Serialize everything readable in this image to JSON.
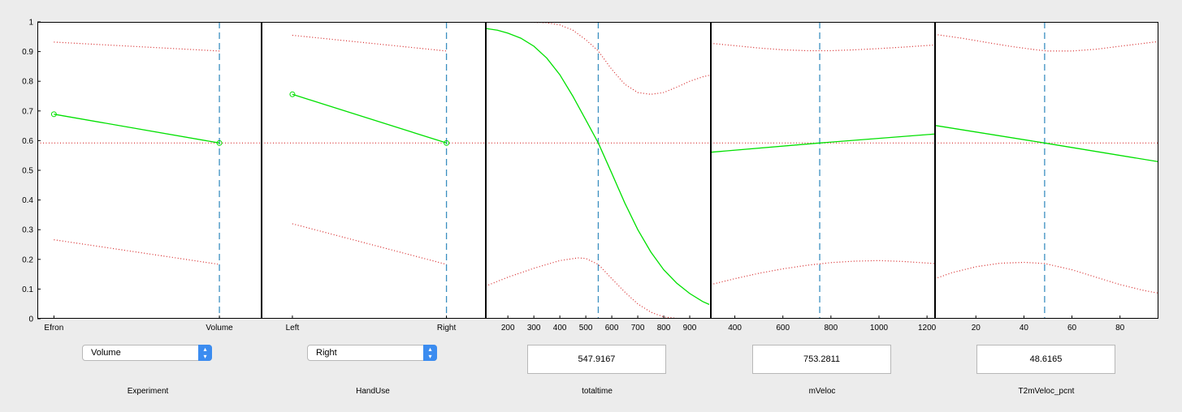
{
  "chart_data": {
    "type": "line",
    "y_axis": {
      "ylim": [
        0,
        1
      ],
      "ticks": [
        "0",
        "0.1",
        "0.2",
        "0.3",
        "0.4",
        "0.5",
        "0.6",
        "0.7",
        "0.8",
        "0.9",
        "1"
      ]
    },
    "response_value": 0.592,
    "colors": {
      "curve": "#00e000",
      "bounds": "#d62728",
      "reference": "#3b8fc0"
    },
    "panels": [
      {
        "predictor": "Experiment",
        "kind": "categorical",
        "xlim": [
          -0.1,
          1.25
        ],
        "ticks": [
          {
            "v": 0,
            "label": "Efron"
          },
          {
            "v": 1,
            "label": "Volume"
          }
        ],
        "current_x": 1,
        "curve": [
          [
            0,
            0.689
          ],
          [
            1,
            0.592
          ]
        ],
        "upper": [
          [
            0,
            0.932
          ],
          [
            1,
            0.902
          ]
        ],
        "lower": [
          [
            0,
            0.266
          ],
          [
            1,
            0.183
          ]
        ],
        "markers": [
          [
            0,
            0.689
          ],
          [
            1,
            0.592
          ]
        ]
      },
      {
        "predictor": "HandUse",
        "kind": "categorical",
        "xlim": [
          -0.2,
          1.25
        ],
        "ticks": [
          {
            "v": 0,
            "label": "Left"
          },
          {
            "v": 1,
            "label": "Right"
          }
        ],
        "current_x": 1,
        "curve": [
          [
            0,
            0.756
          ],
          [
            1,
            0.592
          ]
        ],
        "upper": [
          [
            0,
            0.955
          ],
          [
            1,
            0.902
          ]
        ],
        "lower": [
          [
            0,
            0.32
          ],
          [
            1,
            0.183
          ]
        ],
        "markers": [
          [
            0,
            0.756
          ],
          [
            1,
            0.592
          ]
        ]
      },
      {
        "predictor": "totaltime",
        "kind": "continuous",
        "xlim": [
          115,
          975
        ],
        "ticks": [
          {
            "v": 200,
            "label": "200"
          },
          {
            "v": 300,
            "label": "300"
          },
          {
            "v": 400,
            "label": "400"
          },
          {
            "v": 500,
            "label": "500"
          },
          {
            "v": 600,
            "label": "600"
          },
          {
            "v": 700,
            "label": "700"
          },
          {
            "v": 800,
            "label": "800"
          },
          {
            "v": 900,
            "label": "900"
          }
        ],
        "current_x": 547.9167,
        "curve": [
          [
            115,
            0.978
          ],
          [
            160,
            0.972
          ],
          [
            200,
            0.962
          ],
          [
            250,
            0.945
          ],
          [
            300,
            0.918
          ],
          [
            350,
            0.878
          ],
          [
            400,
            0.822
          ],
          [
            450,
            0.75
          ],
          [
            500,
            0.67
          ],
          [
            548,
            0.592
          ],
          [
            600,
            0.49
          ],
          [
            650,
            0.39
          ],
          [
            700,
            0.3
          ],
          [
            750,
            0.225
          ],
          [
            800,
            0.165
          ],
          [
            850,
            0.12
          ],
          [
            900,
            0.085
          ],
          [
            950,
            0.058
          ],
          [
            975,
            0.048
          ]
        ],
        "upper": [
          [
            115,
            1.0
          ],
          [
            250,
            1.0
          ],
          [
            350,
            0.997
          ],
          [
            400,
            0.99
          ],
          [
            450,
            0.972
          ],
          [
            500,
            0.94
          ],
          [
            548,
            0.902
          ],
          [
            600,
            0.84
          ],
          [
            650,
            0.79
          ],
          [
            700,
            0.762
          ],
          [
            750,
            0.756
          ],
          [
            800,
            0.762
          ],
          [
            850,
            0.78
          ],
          [
            900,
            0.8
          ],
          [
            950,
            0.815
          ],
          [
            975,
            0.82
          ]
        ],
        "lower": [
          [
            115,
            0.11
          ],
          [
            200,
            0.14
          ],
          [
            300,
            0.17
          ],
          [
            400,
            0.196
          ],
          [
            470,
            0.205
          ],
          [
            500,
            0.203
          ],
          [
            548,
            0.183
          ],
          [
            600,
            0.135
          ],
          [
            650,
            0.09
          ],
          [
            700,
            0.05
          ],
          [
            750,
            0.022
          ],
          [
            800,
            0.006
          ],
          [
            850,
            0.001
          ],
          [
            900,
            0.0
          ],
          [
            975,
            0.0
          ]
        ],
        "markers": []
      },
      {
        "predictor": "mVeloc",
        "kind": "continuous",
        "xlim": [
          300,
          1230
        ],
        "ticks": [
          {
            "v": 400,
            "label": "400"
          },
          {
            "v": 600,
            "label": "600"
          },
          {
            "v": 800,
            "label": "800"
          },
          {
            "v": 1000,
            "label": "1000"
          },
          {
            "v": 1200,
            "label": "1200"
          }
        ],
        "current_x": 753.2811,
        "curve": [
          [
            300,
            0.561
          ],
          [
            753,
            0.592
          ],
          [
            1230,
            0.622
          ]
        ],
        "upper": [
          [
            300,
            0.928
          ],
          [
            400,
            0.92
          ],
          [
            500,
            0.912
          ],
          [
            600,
            0.906
          ],
          [
            700,
            0.903
          ],
          [
            800,
            0.903
          ],
          [
            900,
            0.906
          ],
          [
            1000,
            0.91
          ],
          [
            1100,
            0.915
          ],
          [
            1230,
            0.922
          ]
        ],
        "lower": [
          [
            300,
            0.115
          ],
          [
            400,
            0.135
          ],
          [
            500,
            0.153
          ],
          [
            600,
            0.168
          ],
          [
            700,
            0.18
          ],
          [
            800,
            0.189
          ],
          [
            900,
            0.194
          ],
          [
            1000,
            0.196
          ],
          [
            1100,
            0.193
          ],
          [
            1230,
            0.186
          ]
        ],
        "markers": []
      },
      {
        "predictor": "T2mVeloc_pcnt",
        "kind": "continuous",
        "xlim": [
          3,
          96
        ],
        "ticks": [
          {
            "v": 20,
            "label": "20"
          },
          {
            "v": 40,
            "label": "40"
          },
          {
            "v": 60,
            "label": "60"
          },
          {
            "v": 80,
            "label": "80"
          }
        ],
        "current_x": 48.6165,
        "curve": [
          [
            3,
            0.651
          ],
          [
            48.6,
            0.592
          ],
          [
            96,
            0.529
          ]
        ],
        "upper": [
          [
            3,
            0.958
          ],
          [
            15,
            0.944
          ],
          [
            25,
            0.93
          ],
          [
            35,
            0.917
          ],
          [
            45,
            0.906
          ],
          [
            50,
            0.902
          ],
          [
            60,
            0.902
          ],
          [
            70,
            0.908
          ],
          [
            80,
            0.918
          ],
          [
            90,
            0.928
          ],
          [
            96,
            0.934
          ]
        ],
        "lower": [
          [
            3,
            0.135
          ],
          [
            10,
            0.155
          ],
          [
            20,
            0.175
          ],
          [
            30,
            0.187
          ],
          [
            40,
            0.19
          ],
          [
            48.6,
            0.186
          ],
          [
            60,
            0.165
          ],
          [
            70,
            0.14
          ],
          [
            80,
            0.115
          ],
          [
            90,
            0.095
          ],
          [
            96,
            0.086
          ]
        ],
        "markers": []
      }
    ]
  },
  "controls": {
    "experiment": {
      "label": "Experiment",
      "selected": "Volume",
      "chevrons": "▴▾"
    },
    "handuse": {
      "label": "HandUse",
      "selected": "Right",
      "chevrons": "▴▾"
    },
    "totaltime": {
      "label": "totaltime",
      "value": "547.9167"
    },
    "mveloc": {
      "label": "mVeloc",
      "value": "753.2811"
    },
    "t2mveloc": {
      "label": "T2mVeloc_pcnt",
      "value": "48.6165"
    }
  }
}
